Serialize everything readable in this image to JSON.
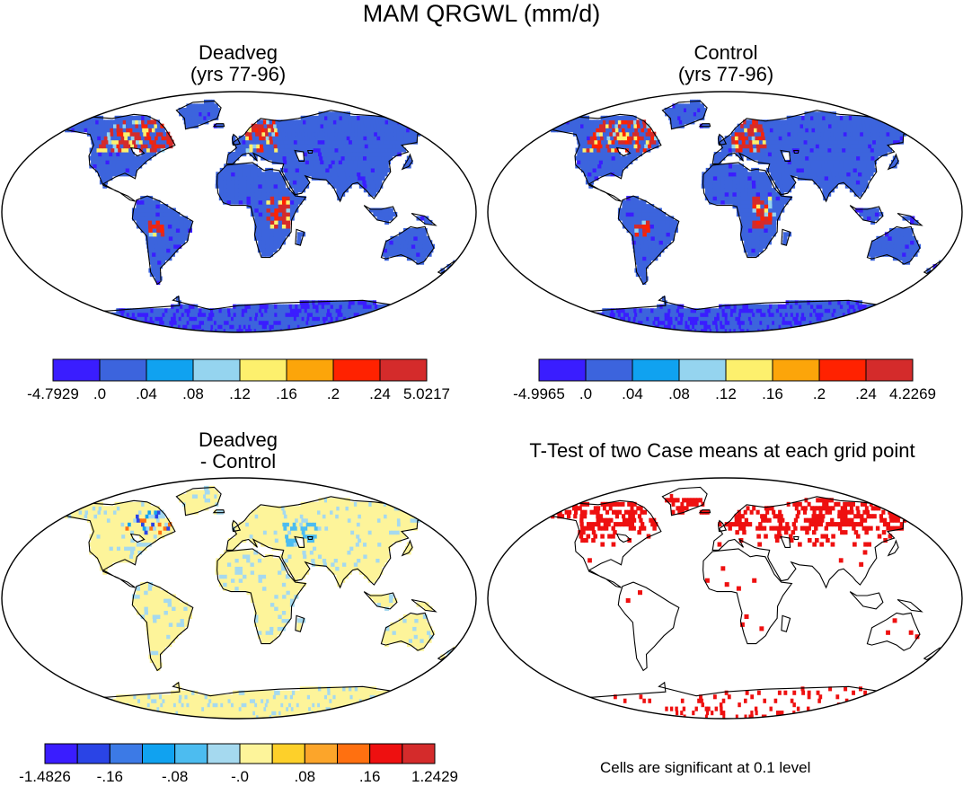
{
  "figure": {
    "title": "MAM QRGWL (mm/d)",
    "footnote": "Cells are significant at 0.1 level"
  },
  "panels": {
    "deadveg": {
      "title_line1": "Deadveg",
      "title_line2": "(yrs 77-96)",
      "colorbar": {
        "colors": [
          "#3a1dff",
          "#3c64dd",
          "#10a2f0",
          "#95d4ef",
          "#fdf06d",
          "#fca50a",
          "#ff2200",
          "#d42b2b"
        ],
        "labels": [
          "-4.7929",
          ".0",
          ".04",
          ".08",
          ".12",
          ".16",
          ".2",
          ".24",
          "5.0217"
        ]
      }
    },
    "control": {
      "title_line1": "Control",
      "title_line2": "(yrs 77-96)",
      "colorbar": {
        "colors": [
          "#3a1dff",
          "#3c64dd",
          "#10a2f0",
          "#95d4ef",
          "#fdf06d",
          "#fca50a",
          "#ff2200",
          "#d42b2b"
        ],
        "labels": [
          "-4.9965",
          ".0",
          ".04",
          ".08",
          ".12",
          ".16",
          ".2",
          ".24",
          "4.2269"
        ]
      }
    },
    "difference": {
      "title_line1": "Deadveg",
      "title_line2": "- Control",
      "colorbar": {
        "colors": [
          "#3a1dff",
          "#2a44e6",
          "#3c7ae6",
          "#10a2f0",
          "#4cbcf0",
          "#a5d9ef",
          "#fdf49a",
          "#fdd02a",
          "#fca52a",
          "#ff7010",
          "#ee1010",
          "#d42b2b"
        ],
        "labels": [
          "-1.4826",
          "-.16",
          "-.08",
          "-.0",
          ".08",
          ".16",
          "1.2429"
        ]
      }
    },
    "ttest": {
      "title": "T-Test of two Case means at each grid point",
      "significant_color": "#ee1010"
    }
  }
}
